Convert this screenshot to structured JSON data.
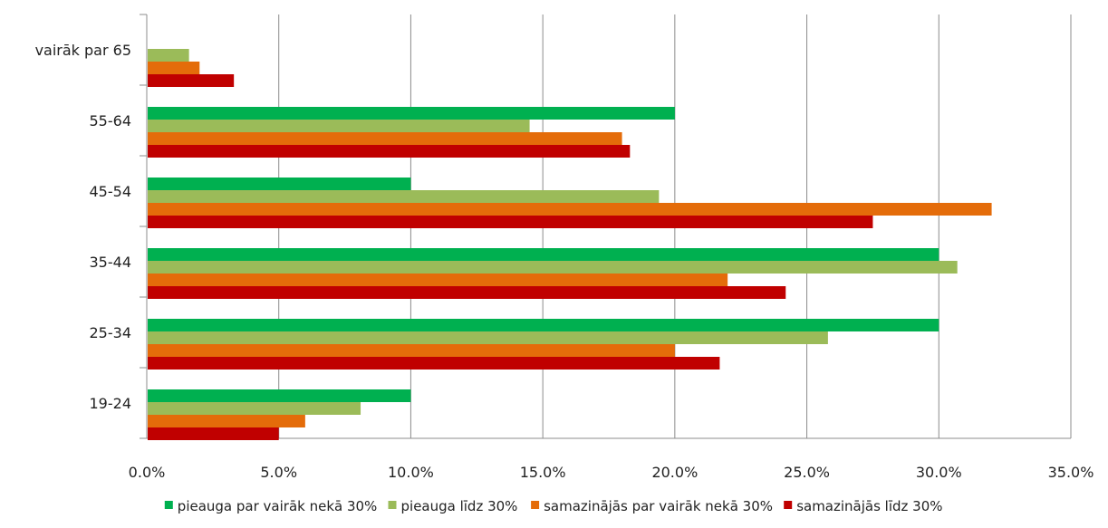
{
  "chart_data": {
    "type": "bar",
    "orientation": "horizontal",
    "categories": [
      "vairāk par 65",
      "55-64",
      "45-54",
      "35-44",
      "25-34",
      "19-24"
    ],
    "series": [
      {
        "name": "pieauga par vairāk nekā 30%",
        "color": "#00b050",
        "values": [
          0,
          20.0,
          10.0,
          30.0,
          30.0,
          10.0
        ]
      },
      {
        "name": "pieauga līdz 30%",
        "color": "#9bbb59",
        "values": [
          1.6,
          14.5,
          19.4,
          30.7,
          25.8,
          8.1
        ]
      },
      {
        "name": "samazinājās par vairāk nekā 30%",
        "color": "#e46c0a",
        "values": [
          2.0,
          18.0,
          32.0,
          22.0,
          20.0,
          6.0
        ]
      },
      {
        "name": "samazinājās līdz 30%",
        "color": "#c00000",
        "values": [
          3.3,
          18.3,
          27.5,
          24.2,
          21.7,
          5.0
        ]
      }
    ],
    "xlim": [
      0,
      35
    ],
    "ticks": [
      0,
      5,
      10,
      15,
      20,
      25,
      30,
      35
    ],
    "tick_labels": [
      "0.0%",
      "5.0%",
      "10.0%",
      "15.0%",
      "20.0%",
      "25.0%",
      "30.0%",
      "35.0%"
    ],
    "grid": "vertical",
    "legend_position": "bottom",
    "title": "",
    "xlabel": "",
    "ylabel": ""
  }
}
